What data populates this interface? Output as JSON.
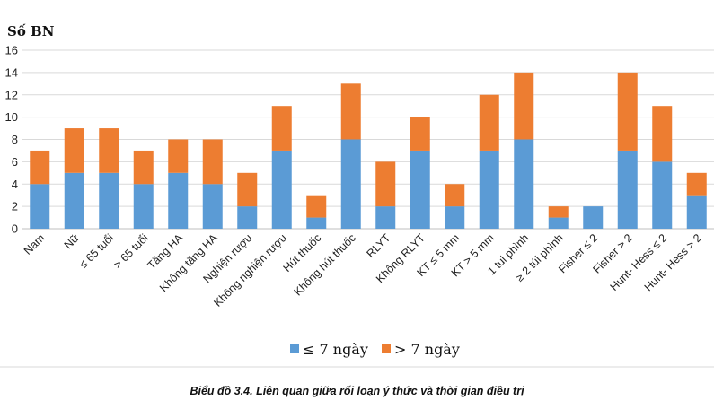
{
  "chart_data": {
    "type": "bar",
    "stacked": true,
    "ylabel": "Số BN",
    "ylim": [
      0,
      16
    ],
    "yticks": [
      0,
      2,
      4,
      6,
      8,
      10,
      12,
      14,
      16
    ],
    "grid": true,
    "legend_position": "bottom",
    "categories": [
      "Nam",
      "Nữ",
      "≤ 65 tuổi",
      "> 65 tuổi",
      "Tăng HA",
      "Không tăng HA",
      "Nghiện rượu",
      "Không nghiện rượu",
      "Hút thuốc",
      "Không hút thuốc",
      "RLYT",
      "Không RLYT",
      "KT ≤ 5 mm",
      "KT > 5 mm",
      "1 túi phình",
      "≥ 2 túi phình",
      "Fisher ≤ 2",
      "Fisher > 2",
      "Hunt- Hess ≤ 2",
      "Hunt- Hess > 2"
    ],
    "series": [
      {
        "name": "≤ 7 ngày",
        "color": "#5b9bd5",
        "values": [
          4,
          5,
          5,
          4,
          5,
          4,
          2,
          7,
          1,
          8,
          2,
          7,
          2,
          7,
          8,
          1,
          2,
          7,
          6,
          3
        ]
      },
      {
        "name": "> 7 ngày",
        "color": "#ed7d31",
        "values": [
          3,
          4,
          4,
          3,
          3,
          4,
          3,
          4,
          2,
          5,
          4,
          3,
          2,
          5,
          6,
          1,
          0,
          7,
          5,
          2
        ]
      }
    ]
  },
  "caption": "Biểu đồ 3.4. Liên quan giữa rối loạn ý thức và thời gian điều trị"
}
